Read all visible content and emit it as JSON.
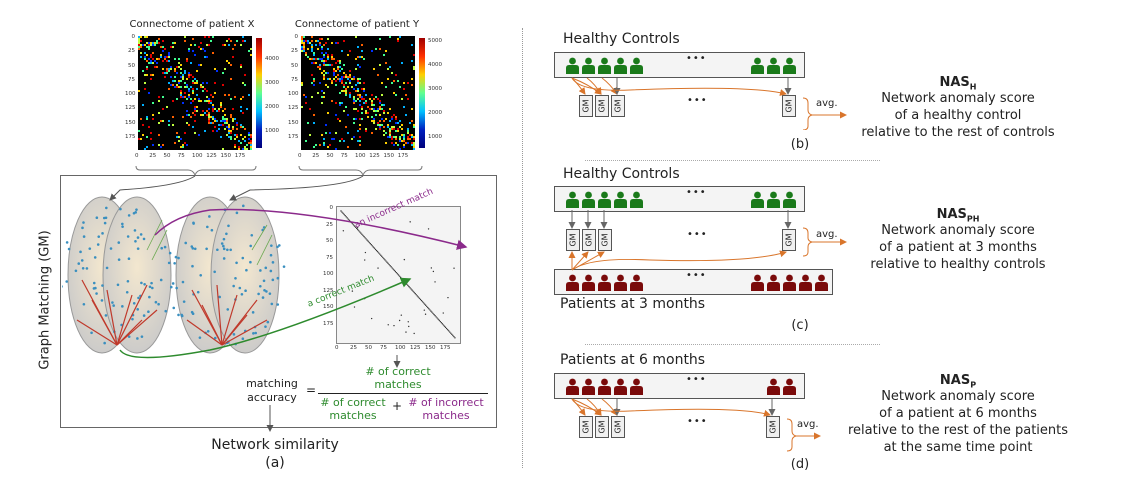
{
  "panel_a": {
    "conn_x_title": "Connectome of patient X",
    "conn_y_title": "Connectome of patient Y",
    "conn_x_yticks": [
      "0",
      "25",
      "50",
      "75",
      "100",
      "125",
      "150",
      "175"
    ],
    "conn_x_xticks": [
      "0",
      "25",
      "50",
      "75",
      "100",
      "125",
      "150",
      "175"
    ],
    "conn_x_cbar": [
      "4000",
      "3000",
      "2000",
      "1000"
    ],
    "conn_y_yticks": [
      "0",
      "25",
      "50",
      "75",
      "100",
      "125",
      "150",
      "175"
    ],
    "conn_y_xticks": [
      "0",
      "25",
      "50",
      "75",
      "100",
      "125",
      "150",
      "175"
    ],
    "conn_y_cbar": [
      "5000",
      "4000",
      "3000",
      "2000",
      "1000"
    ],
    "gm_side_label": "Graph Matching (GM)",
    "perm_yticks": [
      "0",
      "25",
      "50",
      "75",
      "100",
      "125",
      "150",
      "175"
    ],
    "perm_xticks": [
      "0",
      "25",
      "50",
      "75",
      "100",
      "125",
      "150",
      "175"
    ],
    "incorrect_match": "an incorrect match",
    "correct_match": "a correct match",
    "matching_accuracy_l1": "matching",
    "matching_accuracy_l2": "accuracy",
    "equals": "=",
    "num_correct_l1": "# of correct",
    "num_correct_l2": "matches",
    "den_correct_l1": "# of correct",
    "den_correct_l2": "matches",
    "plus": "+",
    "den_incorrect_l1": "# of incorrect",
    "den_incorrect_l2": "matches",
    "network_similarity": "Network similarity",
    "caption": "(a)"
  },
  "panel_b": {
    "group": "Healthy Controls",
    "dots": "•••",
    "gm": "GM",
    "gm_dots": "•••",
    "avg": "avg.",
    "nas_main": "NAS",
    "nas_sub": "H",
    "desc1": "Network anomaly score",
    "desc2": "of a healthy control",
    "desc3": "relative to the rest of controls",
    "caption": "(b)"
  },
  "panel_c": {
    "group_top": "Healthy Controls",
    "group_bottom": "Patients at 3 months",
    "dots": "•••",
    "gm": "GM",
    "avg": "avg.",
    "nas_main": "NAS",
    "nas_sub": "PH",
    "desc1": "Network anomaly score",
    "desc2": "of a patient at 3 months",
    "desc3": "relative to healthy controls",
    "caption": "(c)"
  },
  "panel_d": {
    "group": "Patients at 6 months",
    "dots": "•••",
    "gm": "GM",
    "avg": "avg.",
    "nas_main": "NAS",
    "nas_sub": "P",
    "desc1": "Network anomaly score",
    "desc2": "of a patient at 6 months",
    "desc3": "relative to the rest of the patients",
    "desc4": "at the same time point",
    "caption": "(d)"
  },
  "colors": {
    "healthy": "#1a7a1a",
    "patient": "#7a0a0a",
    "orange_arrow": "#d9752b",
    "correct": "#2e8b2e",
    "incorrect": "#8b2a8b"
  }
}
